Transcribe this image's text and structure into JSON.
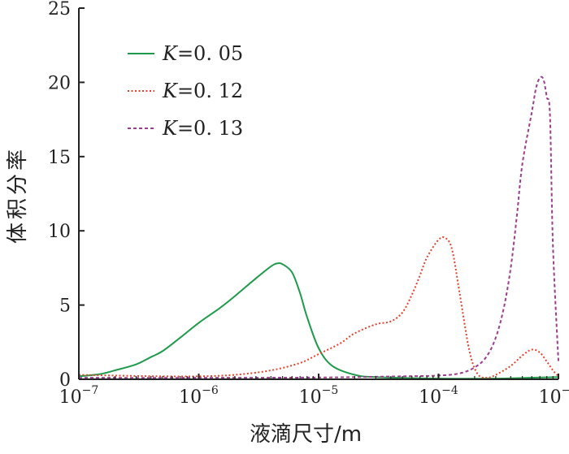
{
  "chart_data": {
    "type": "line",
    "xlabel": "液滴尺寸/m",
    "ylabel": "体积分率",
    "x_scale": "log",
    "xlim": [
      1e-07,
      0.001
    ],
    "ylim": [
      0,
      25
    ],
    "x_ticks": [
      {
        "value": 1e-07,
        "base": "10",
        "exp": "−7"
      },
      {
        "value": 1e-06,
        "base": "10",
        "exp": "−6"
      },
      {
        "value": 1e-05,
        "base": "10",
        "exp": "−5"
      },
      {
        "value": 0.0001,
        "base": "10",
        "exp": "−4"
      },
      {
        "value": 0.001,
        "base": "10",
        "exp": "−3"
      }
    ],
    "y_ticks": [
      "0",
      "5",
      "10",
      "15",
      "20",
      "25"
    ],
    "legend_position": "top-left",
    "grid": false,
    "series": [
      {
        "name_var": "K",
        "name_rest": "=0. 05",
        "color": "#1f9a4a",
        "dash": "solid",
        "points": [
          [
            1e-07,
            0.2
          ],
          [
            1.5e-07,
            0.35
          ],
          [
            2e-07,
            0.6
          ],
          [
            3e-07,
            1.0
          ],
          [
            4e-07,
            1.5
          ],
          [
            5e-07,
            1.9
          ],
          [
            7e-07,
            2.8
          ],
          [
            1e-06,
            3.8
          ],
          [
            1.5e-06,
            4.8
          ],
          [
            2e-06,
            5.6
          ],
          [
            3e-06,
            6.8
          ],
          [
            4e-06,
            7.6
          ],
          [
            4.5e-06,
            7.8
          ],
          [
            5e-06,
            7.75
          ],
          [
            6e-06,
            7.2
          ],
          [
            7e-06,
            5.8
          ],
          [
            8e-06,
            4.2
          ],
          [
            1e-05,
            2.1
          ],
          [
            1.3e-05,
            0.9
          ],
          [
            2e-05,
            0.3
          ],
          [
            3e-05,
            0.15
          ],
          [
            0.0001,
            0.05
          ],
          [
            0.0003,
            0.05
          ],
          [
            0.001,
            0.15
          ]
        ]
      },
      {
        "name_var": "K",
        "name_rest": "=0. 12",
        "color": "#e0432b",
        "dash": "dotted",
        "points": [
          [
            1e-07,
            0.3
          ],
          [
            2e-07,
            0.25
          ],
          [
            5e-07,
            0.2
          ],
          [
            1e-06,
            0.2
          ],
          [
            2e-06,
            0.3
          ],
          [
            4e-06,
            0.6
          ],
          [
            7e-06,
            1.1
          ],
          [
            1e-05,
            1.7
          ],
          [
            1.5e-05,
            2.4
          ],
          [
            2e-05,
            3.1
          ],
          [
            3e-05,
            3.7
          ],
          [
            4e-05,
            3.9
          ],
          [
            5e-05,
            4.5
          ],
          [
            6e-05,
            5.7
          ],
          [
            7e-05,
            7.0
          ],
          [
            8e-05,
            8.2
          ],
          [
            0.0001,
            9.4
          ],
          [
            0.000115,
            9.5
          ],
          [
            0.00013,
            8.7
          ],
          [
            0.00015,
            5.8
          ],
          [
            0.00018,
            2.0
          ],
          [
            0.00021,
            0.4
          ],
          [
            0.00025,
            0.1
          ],
          [
            0.0003,
            0.3
          ],
          [
            0.0004,
            0.9
          ],
          [
            0.0005,
            1.6
          ],
          [
            0.0006,
            2.0
          ],
          [
            0.0007,
            1.8
          ],
          [
            0.0008,
            1.2
          ],
          [
            0.0009,
            0.6
          ],
          [
            0.001,
            0.2
          ]
        ]
      },
      {
        "name_var": "K",
        "name_rest": "=0. 13",
        "color": "#9b3e8e",
        "dash": "dashed",
        "points": [
          [
            1e-07,
            0.1
          ],
          [
            1e-06,
            0.1
          ],
          [
            1e-05,
            0.12
          ],
          [
            5e-05,
            0.2
          ],
          [
            0.0001,
            0.25
          ],
          [
            0.00015,
            0.4
          ],
          [
            0.0002,
            0.8
          ],
          [
            0.00025,
            1.5
          ],
          [
            0.0003,
            2.8
          ],
          [
            0.00035,
            4.8
          ],
          [
            0.0004,
            7.5
          ],
          [
            0.00045,
            11.0
          ],
          [
            0.0005,
            14.5
          ],
          [
            0.0006,
            18.0
          ],
          [
            0.00065,
            19.6
          ],
          [
            0.0007,
            20.3
          ],
          [
            0.00075,
            20.2
          ],
          [
            0.0008,
            19.0
          ],
          [
            0.00085,
            17.8
          ],
          [
            0.0009,
            9.0
          ],
          [
            0.001,
            1.2
          ]
        ]
      }
    ]
  }
}
